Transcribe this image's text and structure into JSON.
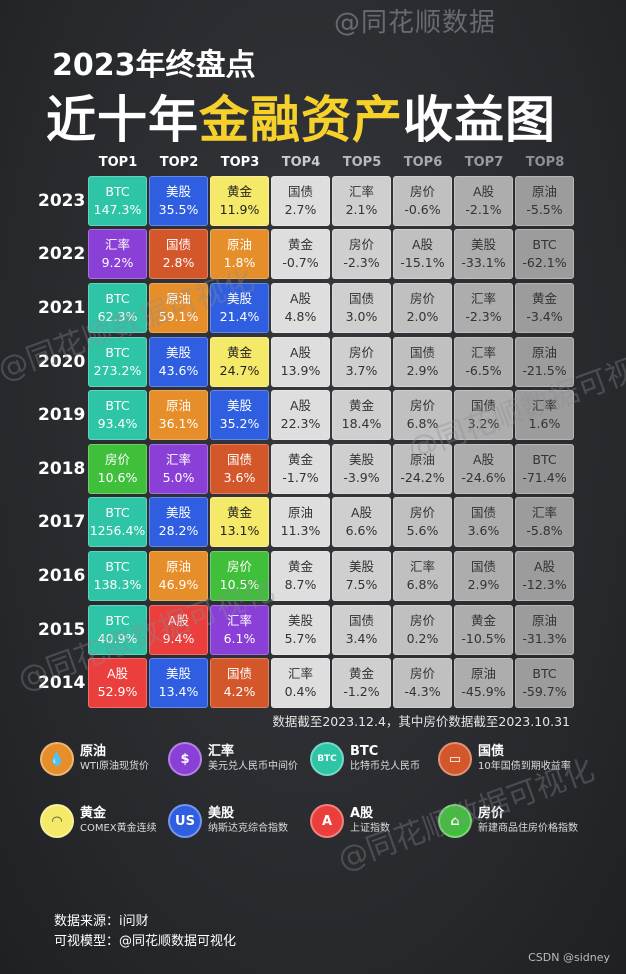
{
  "header": {
    "watermark_top": "@同花顺数据",
    "title_line1": "2023年终盘点",
    "title_line2_a": "近十年",
    "title_line2_b": "金融资产",
    "title_line2_c": "收益图"
  },
  "chart_data": {
    "type": "table",
    "columns": [
      "TOP1",
      "TOP2",
      "TOP3",
      "TOP4",
      "TOP5",
      "TOP6",
      "TOP7",
      "TOP8"
    ],
    "rows": [
      {
        "year": "2023",
        "cells": [
          [
            "BTC",
            "147.3%"
          ],
          [
            "美股",
            "35.5%"
          ],
          [
            "黄金",
            "11.9%"
          ],
          [
            "国债",
            "2.7%"
          ],
          [
            "汇率",
            "2.1%"
          ],
          [
            "房价",
            "-0.6%"
          ],
          [
            "A股",
            "-2.1%"
          ],
          [
            "原油",
            "-5.5%"
          ]
        ]
      },
      {
        "year": "2022",
        "cells": [
          [
            "汇率",
            "9.2%"
          ],
          [
            "国债",
            "2.8%"
          ],
          [
            "原油",
            "1.8%"
          ],
          [
            "黄金",
            "-0.7%"
          ],
          [
            "房价",
            "-2.3%"
          ],
          [
            "A股",
            "-15.1%"
          ],
          [
            "美股",
            "-33.1%"
          ],
          [
            "BTC",
            "-62.1%"
          ]
        ]
      },
      {
        "year": "2021",
        "cells": [
          [
            "BTC",
            "62.3%"
          ],
          [
            "原油",
            "59.1%"
          ],
          [
            "美股",
            "21.4%"
          ],
          [
            "A股",
            "4.8%"
          ],
          [
            "国债",
            "3.0%"
          ],
          [
            "房价",
            "2.0%"
          ],
          [
            "汇率",
            "-2.3%"
          ],
          [
            "黄金",
            "-3.4%"
          ]
        ]
      },
      {
        "year": "2020",
        "cells": [
          [
            "BTC",
            "273.2%"
          ],
          [
            "美股",
            "43.6%"
          ],
          [
            "黄金",
            "24.7%"
          ],
          [
            "A股",
            "13.9%"
          ],
          [
            "房价",
            "3.7%"
          ],
          [
            "国债",
            "2.9%"
          ],
          [
            "汇率",
            "-6.5%"
          ],
          [
            "原油",
            "-21.5%"
          ]
        ]
      },
      {
        "year": "2019",
        "cells": [
          [
            "BTC",
            "93.4%"
          ],
          [
            "原油",
            "36.1%"
          ],
          [
            "美股",
            "35.2%"
          ],
          [
            "A股",
            "22.3%"
          ],
          [
            "黄金",
            "18.4%"
          ],
          [
            "房价",
            "6.8%"
          ],
          [
            "国债",
            "3.2%"
          ],
          [
            "汇率",
            "1.6%"
          ]
        ]
      },
      {
        "year": "2018",
        "cells": [
          [
            "房价",
            "10.6%"
          ],
          [
            "汇率",
            "5.0%"
          ],
          [
            "国债",
            "3.6%"
          ],
          [
            "黄金",
            "-1.7%"
          ],
          [
            "美股",
            "-3.9%"
          ],
          [
            "原油",
            "-24.2%"
          ],
          [
            "A股",
            "-24.6%"
          ],
          [
            "BTC",
            "-71.4%"
          ]
        ]
      },
      {
        "year": "2017",
        "cells": [
          [
            "BTC",
            "1256.4%"
          ],
          [
            "美股",
            "28.2%"
          ],
          [
            "黄金",
            "13.1%"
          ],
          [
            "原油",
            "11.3%"
          ],
          [
            "A股",
            "6.6%"
          ],
          [
            "房价",
            "5.6%"
          ],
          [
            "国债",
            "3.6%"
          ],
          [
            "汇率",
            "-5.8%"
          ]
        ]
      },
      {
        "year": "2016",
        "cells": [
          [
            "BTC",
            "138.3%"
          ],
          [
            "原油",
            "46.9%"
          ],
          [
            "房价",
            "10.5%"
          ],
          [
            "黄金",
            "8.7%"
          ],
          [
            "美股",
            "7.5%"
          ],
          [
            "汇率",
            "6.8%"
          ],
          [
            "国债",
            "2.9%"
          ],
          [
            "A股",
            "-12.3%"
          ]
        ]
      },
      {
        "year": "2015",
        "cells": [
          [
            "BTC",
            "40.9%"
          ],
          [
            "A股",
            "9.4%"
          ],
          [
            "汇率",
            "6.1%"
          ],
          [
            "美股",
            "5.7%"
          ],
          [
            "国债",
            "3.4%"
          ],
          [
            "房价",
            "0.2%"
          ],
          [
            "黄金",
            "-10.5%"
          ],
          [
            "原油",
            "-31.3%"
          ]
        ]
      },
      {
        "year": "2014",
        "cells": [
          [
            "A股",
            "52.9%"
          ],
          [
            "美股",
            "13.4%"
          ],
          [
            "国债",
            "4.2%"
          ],
          [
            "汇率",
            "0.4%"
          ],
          [
            "黄金",
            "-1.2%"
          ],
          [
            "房价",
            "-4.3%"
          ],
          [
            "原油",
            "-45.9%"
          ],
          [
            "BTC",
            "-59.7%"
          ]
        ]
      }
    ]
  },
  "colors": {
    "原油": "#e58e2a",
    "汇率": "#8a3fd6",
    "BTC": "#2ec4a6",
    "国债": "#d4572c",
    "黄金": "#f5e96a",
    "美股": "#2f5fe0",
    "A股": "#ea3f3c",
    "房价": "#3fbf3a",
    "TOP4": "#dedede",
    "TOP5": "#cfcfcf",
    "TOP6": "#c0c0c0",
    "TOP7": "#adadad",
    "TOP8": "#9c9c9c"
  },
  "header_colors": [
    "#ffffff",
    "#ffffff",
    "#ffffff",
    "#c9cbd0",
    "#b7b9be",
    "#a7a9ae",
    "#999ba0",
    "#8d8f94"
  ],
  "note": "数据截至2023.12.4，其中房价数据截至2023.10.31",
  "legend": [
    {
      "name": "原油",
      "desc": "WTI原油现货价",
      "icon": "oil-drop-icon",
      "glyph": "💧"
    },
    {
      "name": "汇率",
      "desc": "美元兑人民币中间价",
      "icon": "dollar-cycle-icon",
      "glyph": "$"
    },
    {
      "name": "BTC",
      "desc": "比特币兑人民币",
      "icon": "btc-coin-icon",
      "glyph": "BTC"
    },
    {
      "name": "国债",
      "desc": "10年国债到期收益率",
      "icon": "bond-certificate-icon",
      "glyph": "▭"
    },
    {
      "name": "黄金",
      "desc": "COMEX黄金连续",
      "icon": "gold-ingot-icon",
      "glyph": "◠"
    },
    {
      "name": "美股",
      "desc": "纳斯达克综合指数",
      "icon": "us-stock-icon",
      "glyph": "US"
    },
    {
      "name": "A股",
      "desc": "上证指数",
      "icon": "a-share-icon",
      "glyph": "A"
    },
    {
      "name": "房价",
      "desc": "新建商品住房价格指数",
      "icon": "house-icon",
      "glyph": "⌂"
    }
  ],
  "source": {
    "data_source": "数据来源：i问财",
    "model": "可视模型：@同花顺数据可视化"
  },
  "watermarks": [
    "@同花顺数据可视化",
    "@同花顺数据可视化",
    "@同花顺数据可视化",
    "@同花顺数据可视化"
  ],
  "credit": "CSDN @sidney"
}
